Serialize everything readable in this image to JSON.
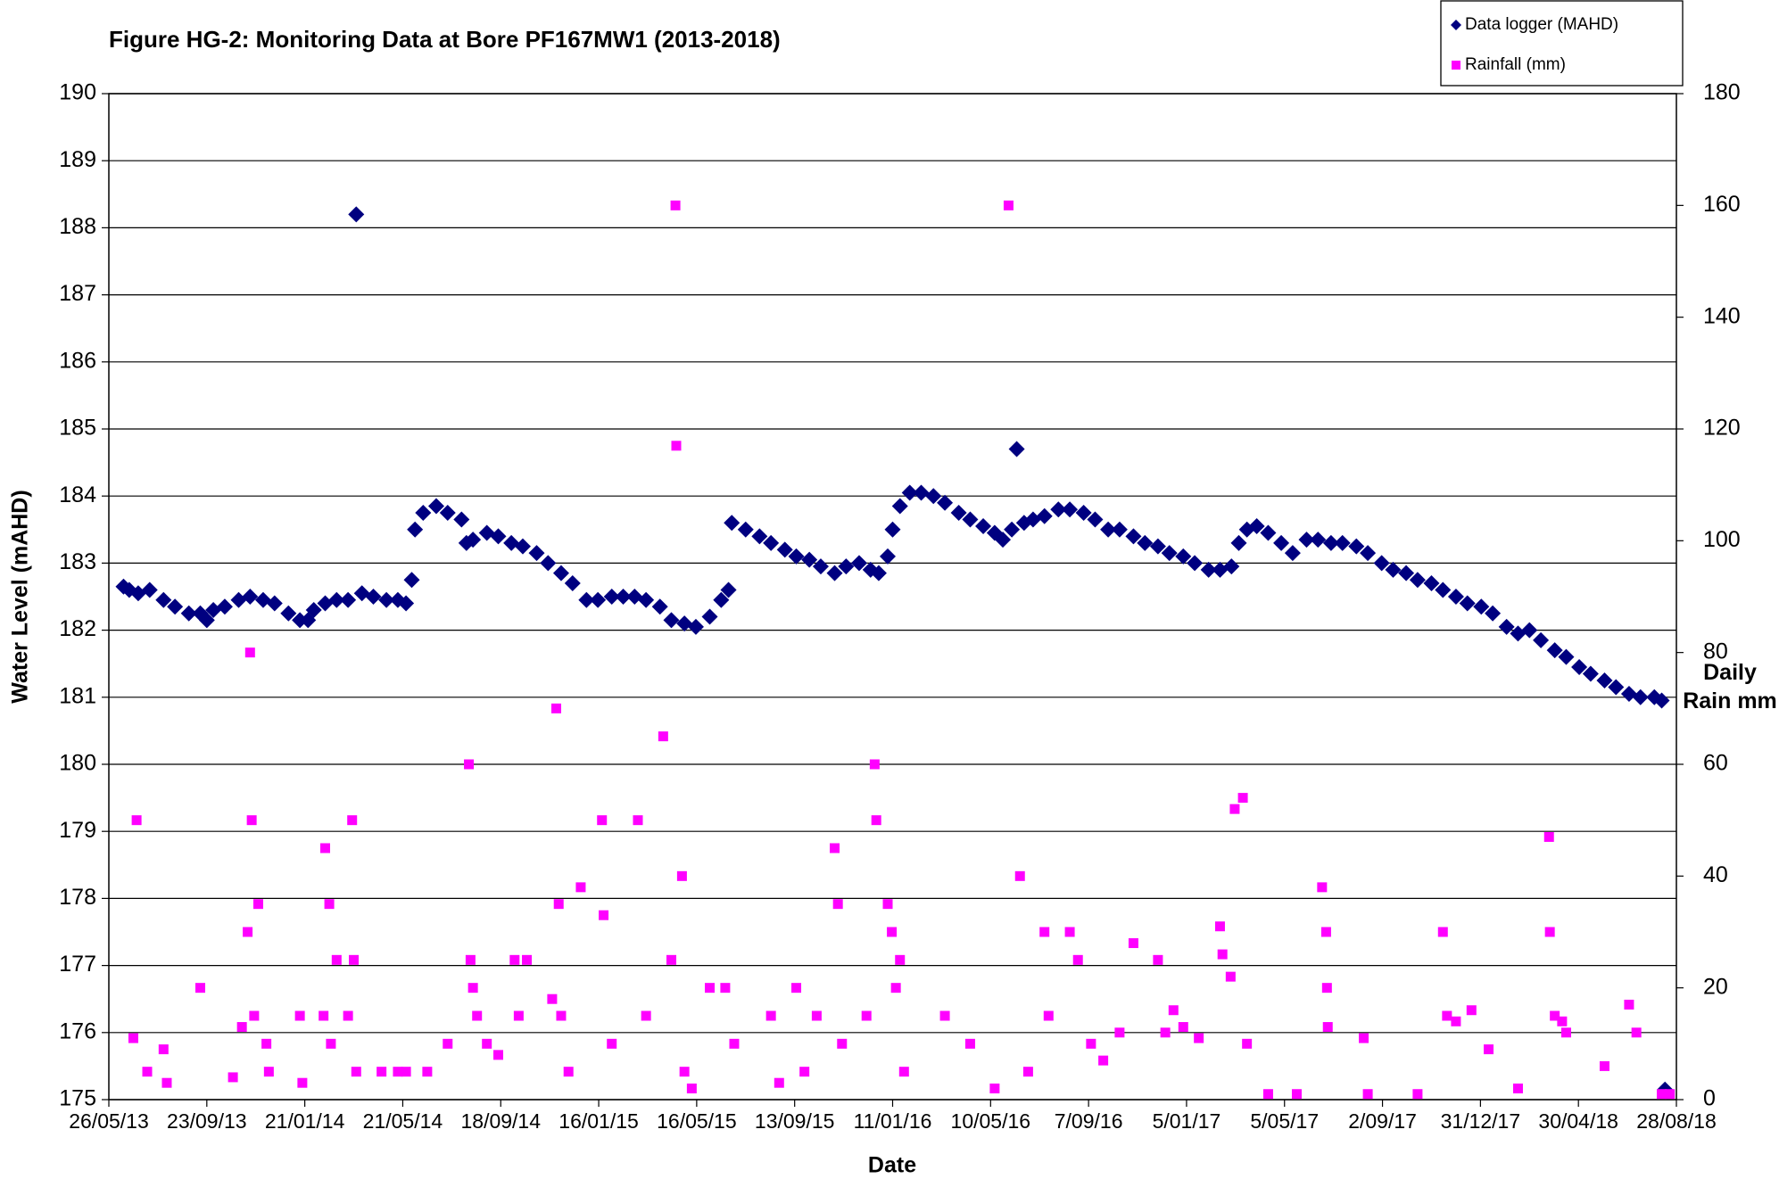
{
  "chart_data": {
    "type": "scatter",
    "title": "Figure HG-2: Monitoring Data at Bore PF167MW1 (2013-2018)",
    "x_label": "Date",
    "y_label": "Water Level (mAHD)",
    "y2_label": "Daily Rain mm",
    "legend": "top-right",
    "grid": true,
    "xlim": [
      "2013-05-26",
      "2018-08-28"
    ],
    "xticks": [
      {
        "value": "2013-05-26",
        "label": "26/05/13"
      },
      {
        "value": "2013-09-23",
        "label": "23/09/13"
      },
      {
        "value": "2014-01-21",
        "label": "21/01/14"
      },
      {
        "value": "2014-05-21",
        "label": "21/05/14"
      },
      {
        "value": "2014-09-18",
        "label": "18/09/14"
      },
      {
        "value": "2015-01-16",
        "label": "16/01/15"
      },
      {
        "value": "2015-05-16",
        "label": "16/05/15"
      },
      {
        "value": "2015-09-13",
        "label": "13/09/15"
      },
      {
        "value": "2016-01-11",
        "label": "11/01/16"
      },
      {
        "value": "2016-05-10",
        "label": "10/05/16"
      },
      {
        "value": "2016-09-07",
        "label": "7/09/16"
      },
      {
        "value": "2017-01-05",
        "label": "5/01/17"
      },
      {
        "value": "2017-05-05",
        "label": "5/05/17"
      },
      {
        "value": "2017-09-02",
        "label": "2/09/17"
      },
      {
        "value": "2017-12-31",
        "label": "31/12/17"
      },
      {
        "value": "2018-04-30",
        "label": "30/04/18"
      },
      {
        "value": "2018-08-28",
        "label": "28/08/18"
      }
    ],
    "ylim": [
      175,
      190
    ],
    "yticks": [
      175,
      176,
      177,
      178,
      179,
      180,
      181,
      182,
      183,
      184,
      185,
      186,
      187,
      188,
      189,
      190
    ],
    "y2lim": [
      0,
      180
    ],
    "y2ticks": [
      0,
      20,
      40,
      60,
      80,
      100,
      120,
      140,
      160,
      180
    ],
    "series": [
      {
        "name": "Data logger (MAHD)",
        "color": "#000080",
        "marker": "diamond",
        "x": [
          "2013-06-13",
          "2013-06-20",
          "2013-07-01",
          "2013-07-15",
          "2013-08-01",
          "2013-08-15",
          "2013-09-01",
          "2013-09-15",
          "2013-09-23",
          "2013-10-01",
          "2013-10-15",
          "2013-11-01",
          "2013-11-15",
          "2013-12-01",
          "2013-12-15",
          "2014-01-01",
          "2014-01-15",
          "2014-01-25",
          "2014-02-01",
          "2014-02-15",
          "2014-03-01",
          "2014-03-15",
          "2014-03-25",
          "2014-04-01",
          "2014-04-15",
          "2014-05-01",
          "2014-05-15",
          "2014-05-25",
          "2014-06-01",
          "2014-06-05",
          "2014-06-15",
          "2014-07-01",
          "2014-07-15",
          "2014-08-01",
          "2014-08-07",
          "2014-08-15",
          "2014-09-01",
          "2014-09-15",
          "2014-10-01",
          "2014-10-15",
          "2014-11-01",
          "2014-11-15",
          "2014-12-01",
          "2014-12-15",
          "2015-01-01",
          "2015-01-15",
          "2015-02-01",
          "2015-02-15",
          "2015-03-01",
          "2015-03-15",
          "2015-04-01",
          "2015-04-15",
          "2015-05-01",
          "2015-05-15",
          "2015-06-01",
          "2015-06-15",
          "2015-06-24",
          "2015-06-28",
          "2015-07-15",
          "2015-08-01",
          "2015-08-15",
          "2015-09-01",
          "2015-09-15",
          "2015-10-01",
          "2015-10-15",
          "2015-11-01",
          "2015-11-15",
          "2015-12-01",
          "2015-12-15",
          "2015-12-25",
          "2016-01-05",
          "2016-01-11",
          "2016-01-20",
          "2016-02-01",
          "2016-02-15",
          "2016-03-01",
          "2016-03-15",
          "2016-04-01",
          "2016-04-15",
          "2016-05-01",
          "2016-05-15",
          "2016-05-25",
          "2016-06-05",
          "2016-06-11",
          "2016-06-20",
          "2016-07-01",
          "2016-07-15",
          "2016-08-01",
          "2016-08-15",
          "2016-09-01",
          "2016-09-15",
          "2016-10-01",
          "2016-10-15",
          "2016-11-01",
          "2016-11-15",
          "2016-12-01",
          "2016-12-15",
          "2017-01-01",
          "2017-01-15",
          "2017-02-01",
          "2017-02-15",
          "2017-03-01",
          "2017-03-10",
          "2017-03-20",
          "2017-04-01",
          "2017-04-15",
          "2017-05-01",
          "2017-05-15",
          "2017-06-01",
          "2017-06-15",
          "2017-07-01",
          "2017-07-15",
          "2017-08-01",
          "2017-08-15",
          "2017-09-01",
          "2017-09-15",
          "2017-10-01",
          "2017-10-15",
          "2017-11-01",
          "2017-11-15",
          "2017-12-01",
          "2017-12-15",
          "2018-01-01",
          "2018-01-15",
          "2018-02-01",
          "2018-02-15",
          "2018-03-01",
          "2018-03-15",
          "2018-04-01",
          "2018-04-15",
          "2018-05-01",
          "2018-05-15",
          "2018-06-01",
          "2018-06-15",
          "2018-07-01",
          "2018-07-15",
          "2018-08-01",
          "2018-08-10",
          "2018-08-14"
        ],
        "values": [
          182.65,
          182.6,
          182.55,
          182.6,
          182.45,
          182.35,
          182.25,
          182.25,
          182.15,
          182.3,
          182.35,
          182.45,
          182.5,
          182.45,
          182.4,
          182.25,
          182.15,
          182.15,
          182.3,
          182.4,
          182.45,
          182.45,
          188.2,
          182.55,
          182.5,
          182.45,
          182.45,
          182.4,
          182.75,
          183.5,
          183.75,
          183.85,
          183.75,
          183.65,
          183.3,
          183.35,
          183.45,
          183.4,
          183.3,
          183.25,
          183.15,
          183.0,
          182.85,
          182.7,
          182.45,
          182.45,
          182.5,
          182.5,
          182.5,
          182.45,
          182.35,
          182.15,
          182.1,
          182.05,
          182.2,
          182.45,
          182.6,
          183.6,
          183.5,
          183.4,
          183.3,
          183.2,
          183.1,
          183.05,
          182.95,
          182.85,
          182.95,
          183.0,
          182.9,
          182.85,
          183.1,
          183.5,
          183.85,
          184.05,
          184.05,
          184.0,
          183.9,
          183.75,
          183.65,
          183.55,
          183.45,
          183.35,
          183.5,
          184.7,
          183.6,
          183.65,
          183.7,
          183.8,
          183.8,
          183.75,
          183.65,
          183.5,
          183.5,
          183.4,
          183.3,
          183.25,
          183.15,
          183.1,
          183.0,
          182.9,
          182.9,
          182.95,
          183.3,
          183.5,
          183.55,
          183.45,
          183.3,
          183.15,
          183.35,
          183.35,
          183.3,
          183.3,
          183.25,
          183.15,
          183.0,
          182.9,
          182.85,
          182.75,
          182.7,
          182.6,
          182.5,
          182.4,
          182.35,
          182.25,
          182.05,
          181.95,
          182.0,
          181.85,
          181.7,
          181.6,
          181.45,
          181.35,
          181.25,
          181.15,
          181.05,
          181.0,
          181.0,
          180.95,
          175.15
        ]
      },
      {
        "name": "Rainfall (mm)",
        "color": "#ff00ff",
        "marker": "square",
        "axis": "y2",
        "x": [
          "2013-06-25",
          "2013-06-29",
          "2013-07-12",
          "2013-08-01",
          "2013-08-05",
          "2013-09-15",
          "2013-10-25",
          "2013-11-05",
          "2013-11-12",
          "2013-11-15",
          "2013-11-17",
          "2013-11-20",
          "2013-11-25",
          "2013-12-05",
          "2013-12-08",
          "2014-01-15",
          "2014-01-18",
          "2014-02-13",
          "2014-02-15",
          "2014-02-20",
          "2014-02-22",
          "2014-03-01",
          "2014-03-15",
          "2014-03-20",
          "2014-03-22",
          "2014-03-25",
          "2014-04-25",
          "2014-05-15",
          "2014-05-25",
          "2014-06-20",
          "2014-07-15",
          "2014-08-10",
          "2014-08-12",
          "2014-08-15",
          "2014-08-20",
          "2014-09-01",
          "2014-09-15",
          "2014-10-05",
          "2014-10-10",
          "2014-10-20",
          "2014-11-20",
          "2014-11-25",
          "2014-11-28",
          "2014-12-01",
          "2014-12-10",
          "2014-12-25",
          "2015-01-20",
          "2015-01-22",
          "2015-02-01",
          "2015-03-05",
          "2015-03-15",
          "2015-04-05",
          "2015-04-15",
          "2015-04-20",
          "2015-04-21",
          "2015-04-28",
          "2015-05-01",
          "2015-05-10",
          "2015-06-01",
          "2015-06-20",
          "2015-07-01",
          "2015-08-15",
          "2015-08-25",
          "2015-09-15",
          "2015-09-25",
          "2015-10-10",
          "2015-11-01",
          "2015-11-05",
          "2015-11-10",
          "2015-12-10",
          "2015-12-20",
          "2015-12-22",
          "2016-01-05",
          "2016-01-10",
          "2016-01-15",
          "2016-01-20",
          "2016-01-25",
          "2016-03-15",
          "2016-04-15",
          "2016-05-15",
          "2016-06-01",
          "2016-06-15",
          "2016-06-25",
          "2016-07-15",
          "2016-07-20",
          "2016-08-15",
          "2016-08-25",
          "2016-09-10",
          "2016-09-25",
          "2016-10-15",
          "2016-11-01",
          "2016-12-01",
          "2016-12-10",
          "2016-12-20",
          "2017-01-01",
          "2017-01-20",
          "2017-02-15",
          "2017-02-18",
          "2017-02-28",
          "2017-03-05",
          "2017-03-15",
          "2017-03-20",
          "2017-04-15",
          "2017-05-20",
          "2017-06-20",
          "2017-06-25",
          "2017-06-26",
          "2017-06-27",
          "2017-08-10",
          "2017-08-15",
          "2017-10-15",
          "2017-11-15",
          "2017-11-20",
          "2017-12-01",
          "2017-12-20",
          "2018-01-10",
          "2018-02-15",
          "2018-03-25",
          "2018-03-26",
          "2018-04-01",
          "2018-04-10",
          "2018-04-15",
          "2018-06-01",
          "2018-07-01",
          "2018-07-10",
          "2018-08-10",
          "2018-08-20"
        ],
        "values": [
          11,
          50,
          5,
          9,
          3,
          20,
          4,
          13,
          30,
          80,
          50,
          15,
          35,
          10,
          5,
          15,
          3,
          15,
          45,
          35,
          10,
          25,
          15,
          50,
          25,
          5,
          5,
          5,
          5,
          5,
          10,
          60,
          25,
          20,
          15,
          10,
          8,
          25,
          15,
          25,
          18,
          70,
          35,
          15,
          5,
          38,
          50,
          33,
          10,
          50,
          15,
          65,
          25,
          160,
          117,
          40,
          5,
          2,
          20,
          20,
          10,
          15,
          3,
          20,
          5,
          15,
          45,
          35,
          10,
          15,
          60,
          50,
          35,
          30,
          20,
          25,
          5,
          15,
          10,
          2,
          160,
          40,
          5,
          30,
          15,
          30,
          25,
          10,
          7,
          12,
          28,
          25,
          12,
          16,
          13,
          11,
          31,
          26,
          22,
          52,
          54,
          10,
          1,
          1,
          38,
          30,
          20,
          13,
          11,
          1,
          1,
          30,
          15,
          14,
          16,
          9,
          2,
          47,
          30,
          15,
          14,
          12,
          6,
          17,
          12,
          1,
          1
        ]
      }
    ]
  }
}
